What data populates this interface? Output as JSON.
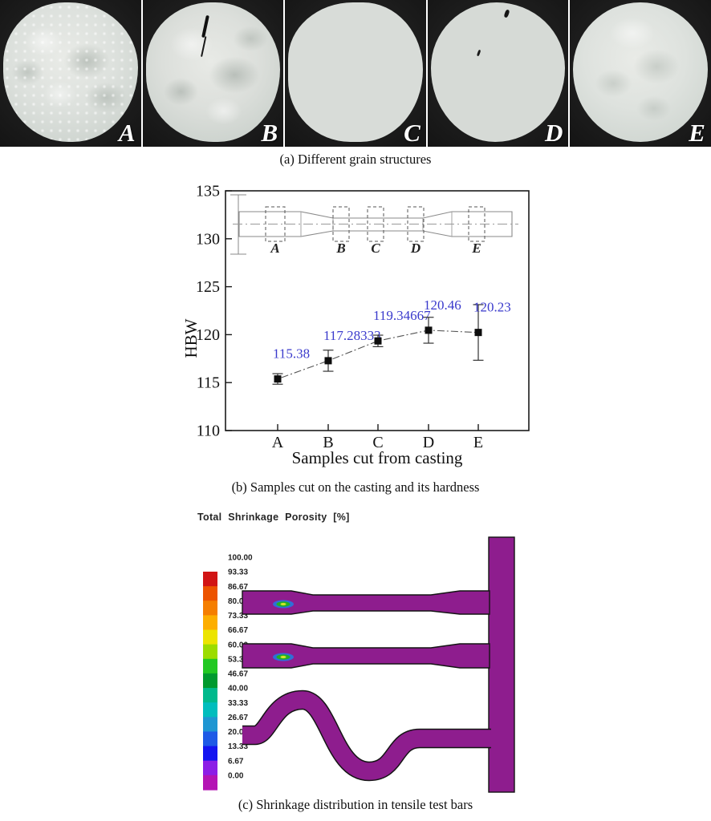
{
  "panel_a": {
    "caption": "(a) Different grain structures",
    "photos": [
      {
        "label": "A"
      },
      {
        "label": "B"
      },
      {
        "label": "C"
      },
      {
        "label": "D"
      },
      {
        "label": "E"
      }
    ]
  },
  "panel_b": {
    "caption": "(b) Samples cut on the casting and its hardness"
  },
  "panel_c": {
    "title": "Total Shrinkage Porosity [%]",
    "caption": "(c) Shrinkage distribution in tensile test bars",
    "casting_color": "#8e1d8e",
    "colorbar": {
      "labels": [
        "100.00",
        "93.33",
        "86.67",
        "80.00",
        "73.33",
        "66.67",
        "60.00",
        "53.33",
        "46.67",
        "40.00",
        "33.33",
        "26.67",
        "20.00",
        "13.33",
        "6.67",
        "0.00"
      ],
      "colors": [
        "#d11414",
        "#ec5300",
        "#f57e00",
        "#fdae00",
        "#ece400",
        "#9cdc00",
        "#22c822",
        "#009a2e",
        "#00b98c",
        "#00bdbd",
        "#1e96d2",
        "#1e5ae6",
        "#1414f0",
        "#8c1ee6",
        "#b414b4"
      ]
    }
  },
  "chart_data": {
    "type": "line",
    "title": "",
    "categories": [
      "A",
      "B",
      "C",
      "D",
      "E"
    ],
    "series": [
      {
        "name": "HBW",
        "values": [
          115.38,
          117.28333,
          119.34667,
          120.46,
          120.23
        ],
        "errors": [
          0.55,
          1.1,
          0.6,
          1.35,
          2.9
        ],
        "point_labels": [
          "115.38",
          "117.28333",
          "119.34667",
          "120.46",
          "120.23"
        ]
      }
    ],
    "xlabel": "Samples cut from casting",
    "ylabel": "HBW",
    "ylim": [
      110,
      135
    ],
    "yticks": [
      110,
      115,
      120,
      125,
      130,
      135
    ],
    "grid": false,
    "legend": false,
    "point_label_color": "#3a3acc",
    "inset": {
      "labels": [
        "A",
        "B",
        "C",
        "D",
        "E"
      ]
    }
  }
}
